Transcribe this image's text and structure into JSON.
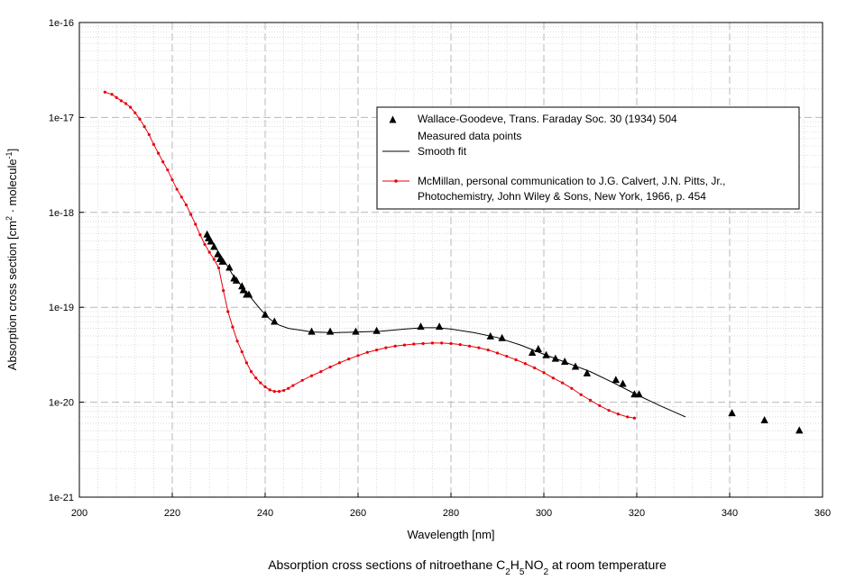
{
  "chart_data": {
    "type": "scatter",
    "title": {
      "prefix": "Absorption cross sections of nitroethane C",
      "sub1": "2",
      "mid1": "H",
      "sub2": "5",
      "mid2": "NO",
      "sub3": "2",
      "suffix": " at room temperature"
    },
    "xlabel": "Wavelength [nm]",
    "ylabel": {
      "prefix": "Absorption cross section [cm",
      "sup1": "2",
      "mid": " · molecule",
      "sup2": "-1",
      "suffix": "]"
    },
    "xlim": [
      200,
      360
    ],
    "ylim_log10": [
      -21,
      -16
    ],
    "x_ticks": [
      200,
      220,
      240,
      260,
      280,
      300,
      320,
      340,
      360
    ],
    "y_ticks": [
      {
        "exp": -16,
        "label": "1e-16"
      },
      {
        "exp": -17,
        "label": "1e-17"
      },
      {
        "exp": -18,
        "label": "1e-18"
      },
      {
        "exp": -19,
        "label": "1e-19"
      },
      {
        "exp": -20,
        "label": "1e-20"
      },
      {
        "exp": -21,
        "label": "1e-21"
      }
    ],
    "grid": true,
    "legend_position": "upper-right",
    "legend": {
      "wallace_line1": "Wallace-Goodeve, Trans. Faraday Soc. 30 (1934) 504",
      "wallace_line2": "Measured data points",
      "smooth_fit": "Smooth fit",
      "mcmillan_line1": "McMillan, personal communication to J.G. Calvert, J.N. Pitts, Jr.,",
      "mcmillan_line2": "Photochemistry, John Wiley & Sons, New York, 1966, p. 454"
    },
    "series": [
      {
        "name": "Wallace-Goodeve measured data points",
        "marker": "triangle",
        "color": "#000000",
        "x": [
          227.5,
          227.8,
          228.3,
          229.0,
          229.8,
          230.3,
          230.8,
          232.3,
          233.3,
          233.8,
          235.0,
          235.3,
          236.0,
          236.5,
          240.0,
          242.0,
          250.0,
          254.0,
          259.5,
          264.0,
          273.5,
          277.5,
          288.5,
          291.0,
          297.5,
          298.8,
          300.5,
          302.5,
          304.5,
          306.8,
          309.3,
          315.5,
          317.0,
          319.5,
          320.5,
          340.5,
          347.5,
          355.0
        ],
        "y": [
          5.8e-19,
          5.3e-19,
          4.9e-19,
          4.3e-19,
          3.6e-19,
          3.2e-19,
          3e-19,
          2.6e-19,
          2e-19,
          1.9e-19,
          1.65e-19,
          1.5e-19,
          1.35e-19,
          1.35e-19,
          8.3e-20,
          7e-20,
          5.5e-20,
          5.5e-20,
          5.5e-20,
          5.6e-20,
          6.2e-20,
          6.2e-20,
          4.9e-20,
          4.7e-20,
          3.3e-20,
          3.6e-20,
          3.1e-20,
          2.85e-20,
          2.65e-20,
          2.35e-20,
          2e-20,
          1.7e-20,
          1.55e-20,
          1.2e-20,
          1.2e-20,
          7.6e-21,
          6.4e-21,
          5e-21
        ]
      },
      {
        "name": "Smooth fit",
        "marker": "none",
        "color": "#000000",
        "x": [
          227.5,
          229,
          231,
          233,
          235,
          237,
          239,
          241,
          243,
          245,
          248,
          250,
          255,
          260,
          265,
          270,
          274,
          277,
          280,
          285,
          290,
          295,
          300,
          305,
          310,
          315,
          320,
          325,
          330.5
        ],
        "y": [
          5.8e-19,
          4.5e-19,
          3.2e-19,
          2.2e-19,
          1.65e-19,
          1.25e-19,
          9.5e-20,
          7.5e-20,
          6.5e-20,
          6e-20,
          5.7e-20,
          5.5e-20,
          5.4e-20,
          5.5e-20,
          5.6e-20,
          5.9e-20,
          6.1e-20,
          6.1e-20,
          5.9e-20,
          5.4e-20,
          4.8e-20,
          4e-20,
          3.2e-20,
          2.6e-20,
          2.1e-20,
          1.6e-20,
          1.2e-20,
          9.2e-21,
          7e-21
        ]
      },
      {
        "name": "McMillan",
        "marker": "dot",
        "color": "#e8000b",
        "x": [
          205.5,
          207,
          208,
          209,
          210,
          211,
          212,
          213,
          214,
          215,
          216,
          217,
          218,
          219,
          220,
          221,
          222,
          223,
          224,
          225,
          226,
          227,
          228,
          229,
          230,
          231,
          232,
          233,
          234,
          235,
          236,
          237,
          238,
          239,
          240,
          241,
          242,
          243,
          244,
          245,
          246,
          248,
          250,
          252,
          254,
          256,
          258,
          260,
          262,
          264,
          266,
          268,
          270,
          272,
          274,
          276,
          278,
          280,
          282,
          284,
          286,
          288,
          290,
          292,
          294,
          296,
          298,
          300,
          302,
          304,
          306,
          308,
          310,
          312,
          314,
          316,
          318,
          319.5
        ],
        "y": [
          1.85e-17,
          1.75e-17,
          1.62e-17,
          1.5e-17,
          1.4e-17,
          1.28e-17,
          1.12e-17,
          9.6e-18,
          8e-18,
          6.6e-18,
          5.2e-18,
          4.2e-18,
          3.4e-18,
          2.8e-18,
          2.2e-18,
          1.75e-18,
          1.45e-18,
          1.2e-18,
          9.5e-19,
          7.5e-19,
          5.8e-19,
          4.6e-19,
          3.8e-19,
          3.2e-19,
          2.6e-19,
          1.5e-19,
          9e-20,
          6.2e-20,
          4.4e-20,
          3.4e-20,
          2.6e-20,
          2.1e-20,
          1.8e-20,
          1.6e-20,
          1.45e-20,
          1.35e-20,
          1.3e-20,
          1.3e-20,
          1.33e-20,
          1.4e-20,
          1.5e-20,
          1.7e-20,
          1.9e-20,
          2.1e-20,
          2.35e-20,
          2.6e-20,
          2.85e-20,
          3.1e-20,
          3.35e-20,
          3.55e-20,
          3.75e-20,
          3.9e-20,
          4e-20,
          4.1e-20,
          4.15e-20,
          4.2e-20,
          4.2e-20,
          4.15e-20,
          4.05e-20,
          3.9e-20,
          3.75e-20,
          3.55e-20,
          3.3e-20,
          3.05e-20,
          2.8e-20,
          2.55e-20,
          2.3e-20,
          2.05e-20,
          1.8e-20,
          1.6e-20,
          1.4e-20,
          1.2e-20,
          1.05e-20,
          9.2e-21,
          8.2e-21,
          7.5e-21,
          7e-21,
          6.8e-21
        ]
      }
    ]
  }
}
